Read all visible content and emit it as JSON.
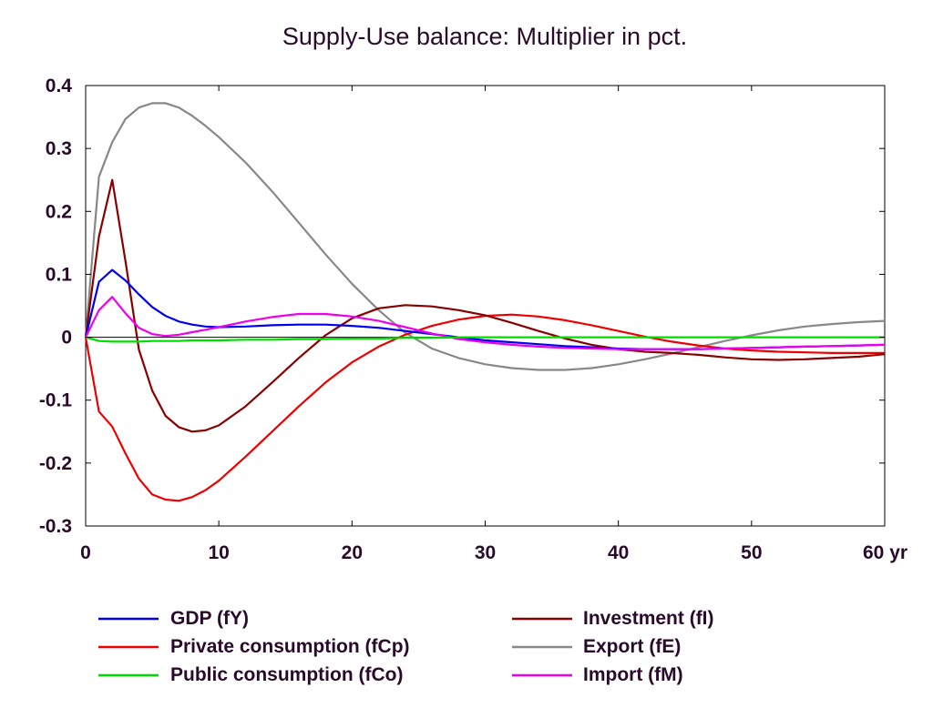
{
  "chart_data": {
    "type": "line",
    "title": "Supply-Use balance: Multiplier in pct.",
    "x_tick_labels": [
      "0",
      "10",
      "20",
      "30",
      "40",
      "50",
      "60 yr"
    ],
    "x_ticks": [
      0,
      10,
      20,
      30,
      40,
      50,
      60
    ],
    "y_tick_labels": [
      "0.4",
      "0.3",
      "0.2",
      "0.1",
      "0",
      "-0.1",
      "-0.2",
      "-0.3"
    ],
    "y_ticks": [
      0.4,
      0.3,
      0.2,
      0.1,
      0,
      -0.1,
      -0.2,
      -0.3
    ],
    "xlim": [
      0,
      60
    ],
    "ylim": [
      -0.3,
      0.4
    ],
    "grid": false,
    "legend_position": "bottom",
    "x": [
      0,
      1,
      2,
      3,
      4,
      5,
      6,
      7,
      8,
      9,
      10,
      12,
      14,
      16,
      18,
      20,
      22,
      24,
      26,
      28,
      30,
      32,
      34,
      36,
      38,
      40,
      42,
      44,
      46,
      48,
      50,
      52,
      54,
      56,
      58,
      60
    ],
    "series": [
      {
        "name": "GDP (fY)",
        "color": "#0000ee",
        "values": [
          0,
          0.088,
          0.107,
          0.09,
          0.068,
          0.048,
          0.034,
          0.025,
          0.02,
          0.017,
          0.016,
          0.017,
          0.019,
          0.02,
          0.02,
          0.018,
          0.015,
          0.01,
          0.005,
          0.0,
          -0.005,
          -0.008,
          -0.011,
          -0.014,
          -0.016,
          -0.018,
          -0.019,
          -0.019,
          -0.019,
          -0.018,
          -0.017,
          -0.016,
          -0.015,
          -0.014,
          -0.013,
          -0.012
        ]
      },
      {
        "name": "Private consumption (fCp)",
        "color": "#ee0000",
        "values": [
          0,
          -0.118,
          -0.142,
          -0.185,
          -0.225,
          -0.25,
          -0.258,
          -0.26,
          -0.254,
          -0.243,
          -0.228,
          -0.19,
          -0.15,
          -0.11,
          -0.072,
          -0.04,
          -0.015,
          0.004,
          0.018,
          0.028,
          0.034,
          0.036,
          0.033,
          0.027,
          0.019,
          0.01,
          0.001,
          -0.007,
          -0.013,
          -0.018,
          -0.021,
          -0.023,
          -0.024,
          -0.025,
          -0.025,
          -0.025
        ]
      },
      {
        "name": "Public consumption (fCo)",
        "color": "#00dd00",
        "values": [
          0,
          -0.006,
          -0.007,
          -0.007,
          -0.007,
          -0.006,
          -0.006,
          -0.006,
          -0.005,
          -0.005,
          -0.005,
          -0.004,
          -0.004,
          -0.003,
          -0.003,
          -0.002,
          -0.002,
          -0.001,
          -0.001,
          0,
          0,
          0,
          0,
          0,
          0,
          0,
          0,
          0,
          0,
          0,
          0,
          0,
          0,
          0,
          0,
          0
        ]
      },
      {
        "name": "Investment (fI)",
        "color": "#880000",
        "values": [
          0,
          0.16,
          0.25,
          0.12,
          -0.02,
          -0.085,
          -0.125,
          -0.143,
          -0.15,
          -0.148,
          -0.14,
          -0.11,
          -0.072,
          -0.033,
          0.003,
          0.03,
          0.046,
          0.051,
          0.049,
          0.043,
          0.035,
          0.023,
          0.01,
          -0.002,
          -0.012,
          -0.019,
          -0.023,
          -0.025,
          -0.028,
          -0.032,
          -0.035,
          -0.036,
          -0.035,
          -0.033,
          -0.031,
          -0.027
        ]
      },
      {
        "name": "Export (fE)",
        "color": "#888888",
        "values": [
          0,
          0.255,
          0.31,
          0.347,
          0.365,
          0.372,
          0.372,
          0.365,
          0.352,
          0.336,
          0.318,
          0.278,
          0.232,
          0.182,
          0.132,
          0.085,
          0.043,
          0.007,
          -0.018,
          -0.033,
          -0.043,
          -0.049,
          -0.052,
          -0.052,
          -0.049,
          -0.043,
          -0.035,
          -0.026,
          -0.016,
          -0.006,
          0.003,
          0.011,
          0.017,
          0.021,
          0.024,
          0.026
        ]
      },
      {
        "name": "Import (fM)",
        "color": "#ee00ee",
        "values": [
          0,
          0.043,
          0.064,
          0.038,
          0.015,
          0.005,
          0.002,
          0.004,
          0.008,
          0.012,
          0.016,
          0.025,
          0.032,
          0.037,
          0.037,
          0.033,
          0.026,
          0.016,
          0.006,
          -0.003,
          -0.008,
          -0.012,
          -0.015,
          -0.017,
          -0.018,
          -0.019,
          -0.019,
          -0.019,
          -0.019,
          -0.018,
          -0.017,
          -0.016,
          -0.015,
          -0.014,
          -0.013,
          -0.012
        ]
      }
    ]
  }
}
